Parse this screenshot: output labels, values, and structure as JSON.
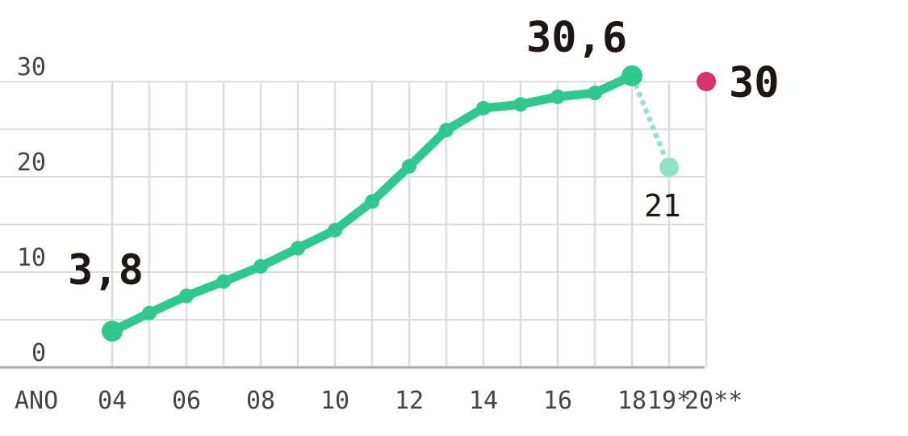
{
  "chart_data": {
    "type": "line",
    "title": "",
    "xlabel": "ANO",
    "ylabel": "",
    "ylim": [
      0,
      30
    ],
    "yticks": [
      0,
      10,
      20,
      30
    ],
    "ytick_labels": [
      "0",
      "10",
      "20",
      "30"
    ],
    "grid": true,
    "x": [
      "04",
      "05",
      "06",
      "07",
      "08",
      "09",
      "10",
      "11",
      "12",
      "13",
      "14",
      "15",
      "16",
      "17",
      "18"
    ],
    "xtick_labels": [
      "04",
      "06",
      "08",
      "10",
      "12",
      "14",
      "16",
      "18",
      "19*",
      "20**"
    ],
    "series": [
      {
        "values": [
          3.8,
          5.7,
          7.5,
          9.0,
          10.6,
          12.5,
          14.4,
          17.4,
          21.1,
          24.9,
          27.2,
          27.6,
          28.4,
          28.8,
          30.6
        ],
        "color": "#2ec98e"
      }
    ],
    "projection": {
      "x": "19*",
      "from_x": "18",
      "value": 21,
      "label": "21",
      "color": "#8fe3c6",
      "style": "dotted"
    },
    "target": {
      "x": "20**",
      "value": 30,
      "label": "30",
      "color": "#d9336e"
    },
    "annotations": [
      {
        "x": "04",
        "value": 3.8,
        "label": "3,8"
      },
      {
        "x": "18",
        "value": 30.6,
        "label": "30,6"
      }
    ]
  }
}
